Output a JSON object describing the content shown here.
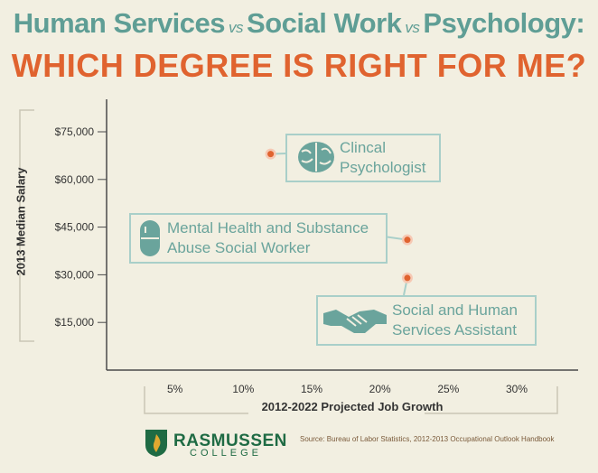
{
  "header": {
    "title_part1": "Human Services",
    "vs1": "vs",
    "title_part2": "Social Work",
    "vs2": "vs",
    "title_part3": "Psychology:",
    "subtitle": "WHICH DEGREE IS RIGHT FOR ME?"
  },
  "colors": {
    "teal": "#5f9e95",
    "orange": "#e0632f",
    "callout_border": "#a9cfc9",
    "background": "#f2efe1",
    "logo_green": "#1f6b44"
  },
  "chart_data": {
    "type": "scatter",
    "xlabel": "2012-2022 Projected Job Growth",
    "ylabel": "2013 Median Salary",
    "xlim": [
      0,
      35
    ],
    "ylim": [
      0,
      85000
    ],
    "x_ticks": [
      {
        "value": 5,
        "label": "5%"
      },
      {
        "value": 10,
        "label": "10%"
      },
      {
        "value": 15,
        "label": "15%"
      },
      {
        "value": 20,
        "label": "20%"
      },
      {
        "value": 25,
        "label": "25%"
      },
      {
        "value": 30,
        "label": "30%"
      }
    ],
    "y_ticks": [
      {
        "value": 15000,
        "label": "$15,000"
      },
      {
        "value": 30000,
        "label": "$30,000"
      },
      {
        "value": 45000,
        "label": "$45,000"
      },
      {
        "value": 60000,
        "label": "$60,000"
      },
      {
        "value": 75000,
        "label": "$75,000"
      }
    ],
    "points": [
      {
        "x": 12,
        "y": 68000,
        "label_line1": "Clincal",
        "label_line2": "Psychologist",
        "icon": "brain-icon"
      },
      {
        "x": 22,
        "y": 41000,
        "label_line1": "Mental Health and Substance",
        "label_line2": "Abuse Social Worker",
        "icon": "pill-icon"
      },
      {
        "x": 22,
        "y": 29000,
        "label_line1": "Social and Human",
        "label_line2": "Services Assistant",
        "icon": "handshake-icon"
      }
    ],
    "grid": false
  },
  "footer": {
    "logo_name": "RASMUSSEN",
    "logo_sub": "COLLEGE",
    "logo_icon": "flame-shield-icon",
    "source": "Source: Bureau of Labor Statistics, 2012-2013 Occupational Outlook Handbook"
  }
}
